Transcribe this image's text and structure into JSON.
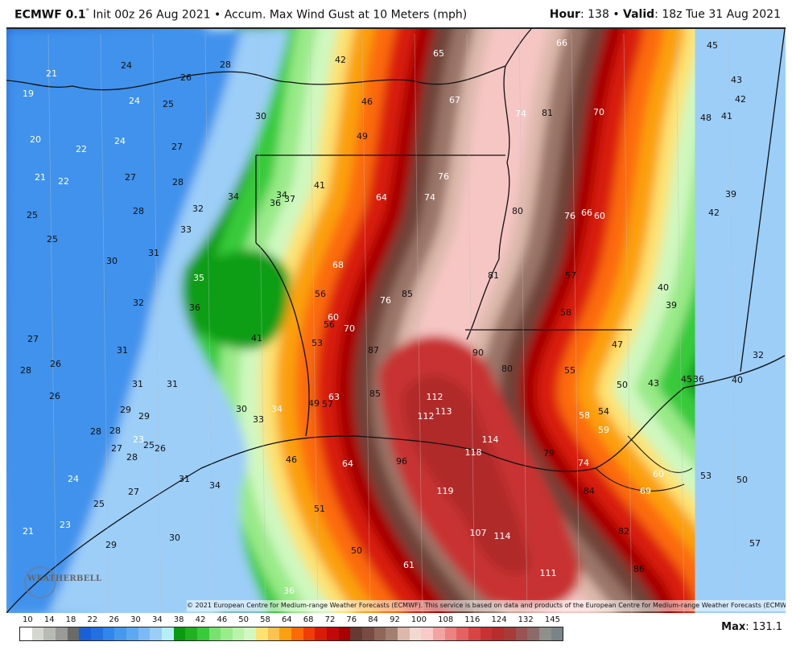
{
  "header": {
    "model": "ECMWF 0.1",
    "degree": "°",
    "init": "Init 00z 26 Aug 2021",
    "sep": "•",
    "field": "Accum. Max Wind Gust at 10 Meters (mph)",
    "hour_label": "Hour",
    "hour_value": ": 138",
    "valid_label": "Valid",
    "valid_value": ": 18z Tue 31 Aug 2021"
  },
  "credit": "© 2021 European Centre for Medium-range Weather Forecasts (ECMWF). This service is based on data and products of the European Centre for Medium-range Weather Forecasts (ECMWF).",
  "logo": "WeatherBELL",
  "max": {
    "label": "Max",
    "value": ": 131.1"
  },
  "legend": {
    "ticks": [
      "10",
      "14",
      "18",
      "22",
      "26",
      "30",
      "34",
      "38",
      "42",
      "46",
      "50",
      "58",
      "64",
      "68",
      "72",
      "76",
      "84",
      "92",
      "100",
      "108",
      "116",
      "124",
      "132",
      "145"
    ],
    "colors": [
      "#ffffff",
      "#d4d6d0",
      "#b8bab4",
      "#9a9b98",
      "#6a6b64",
      "#1a60d8",
      "#2270e2",
      "#3086ea",
      "#4698ee",
      "#5ca8f2",
      "#7cbaf6",
      "#9acef8",
      "#b6eef8",
      "#0a9a10",
      "#20b020",
      "#38ca3a",
      "#78e270",
      "#9aec8a",
      "#baf4aa",
      "#d2f8c2",
      "#fde272",
      "#fcc250",
      "#fba010",
      "#fc6a08",
      "#f03c08",
      "#d81c08",
      "#c20808",
      "#a80000",
      "#663a30",
      "#7a4b42",
      "#8f6658",
      "#a37f72",
      "#dcb8aa",
      "#f1d9d1",
      "#fcc9c9",
      "#f5a2a2",
      "#ec8282",
      "#e46262",
      "#d84444",
      "#c83232",
      "#b82c2c",
      "#a83a3a",
      "#9a5252",
      "#8c6a6a",
      "#8f8f8b",
      "#7a8488"
    ]
  },
  "field_colors": {
    "cyan": "#b4ecf8",
    "green": "#0e9e14",
    "green2": "#38ca3a",
    "lightgreen": "#98ea88",
    "palegreen": "#cff8bf",
    "yellow": "#fde272",
    "orange": "#fba010",
    "orangered": "#fc6a08",
    "red": "#d81c08",
    "darkred": "#a80000",
    "brown": "#6f4238",
    "midbrown": "#9a7568",
    "lightbrown": "#dcb8aa",
    "pink": "#f6c6c4",
    "core": "#c83232",
    "core2": "#b02c2c",
    "blue_dark": "#1f66dc",
    "blue_mid": "#3f92ec",
    "blue_light": "#9ccef8"
  },
  "map_labels": [
    {
      "v": "21",
      "tone": "white"
    },
    {
      "v": "19",
      "tone": "white"
    },
    {
      "v": "24",
      "tone": "black"
    },
    {
      "v": "26",
      "tone": "black"
    },
    {
      "v": "28",
      "tone": "black"
    },
    {
      "v": "24",
      "tone": "white"
    },
    {
      "v": "25",
      "tone": "black"
    },
    {
      "v": "20",
      "tone": "white"
    },
    {
      "v": "22",
      "tone": "white"
    },
    {
      "v": "24",
      "tone": "white"
    },
    {
      "v": "27",
      "tone": "black"
    },
    {
      "v": "21",
      "tone": "white"
    },
    {
      "v": "22",
      "tone": "white"
    },
    {
      "v": "27",
      "tone": "black"
    },
    {
      "v": "28",
      "tone": "black"
    },
    {
      "v": "30",
      "tone": "black"
    },
    {
      "v": "42",
      "tone": "black"
    },
    {
      "v": "46",
      "tone": "black"
    },
    {
      "v": "49",
      "tone": "black"
    },
    {
      "v": "34",
      "tone": "black"
    },
    {
      "v": "32",
      "tone": "black"
    },
    {
      "v": "33",
      "tone": "black"
    },
    {
      "v": "28",
      "tone": "black"
    },
    {
      "v": "25",
      "tone": "black"
    },
    {
      "v": "25",
      "tone": "black"
    },
    {
      "v": "30",
      "tone": "black"
    },
    {
      "v": "31",
      "tone": "black"
    },
    {
      "v": "35",
      "tone": "white"
    },
    {
      "v": "36",
      "tone": "black"
    },
    {
      "v": "32",
      "tone": "black"
    },
    {
      "v": "34",
      "tone": "black"
    },
    {
      "v": "37",
      "tone": "black"
    },
    {
      "v": "36",
      "tone": "black"
    },
    {
      "v": "41",
      "tone": "black"
    },
    {
      "v": "64",
      "tone": "white"
    },
    {
      "v": "68",
      "tone": "white"
    },
    {
      "v": "56",
      "tone": "black"
    },
    {
      "v": "60",
      "tone": "white"
    },
    {
      "v": "66",
      "tone": "white"
    },
    {
      "v": "65",
      "tone": "white"
    },
    {
      "v": "67",
      "tone": "white"
    },
    {
      "v": "74",
      "tone": "white"
    },
    {
      "v": "81",
      "tone": "black"
    },
    {
      "v": "70",
      "tone": "white"
    },
    {
      "v": "45",
      "tone": "black"
    },
    {
      "v": "43",
      "tone": "black"
    },
    {
      "v": "42",
      "tone": "black"
    },
    {
      "v": "48",
      "tone": "black"
    },
    {
      "v": "41",
      "tone": "black"
    },
    {
      "v": "76",
      "tone": "white"
    },
    {
      "v": "74",
      "tone": "white"
    },
    {
      "v": "80",
      "tone": "black"
    },
    {
      "v": "76",
      "tone": "white"
    },
    {
      "v": "66",
      "tone": "white"
    },
    {
      "v": "60",
      "tone": "white"
    },
    {
      "v": "39",
      "tone": "black"
    },
    {
      "v": "42",
      "tone": "black"
    },
    {
      "v": "57",
      "tone": "black"
    },
    {
      "v": "81",
      "tone": "black"
    },
    {
      "v": "85",
      "tone": "black"
    },
    {
      "v": "76",
      "tone": "white"
    },
    {
      "v": "40",
      "tone": "black"
    },
    {
      "v": "39",
      "tone": "black"
    },
    {
      "v": "58",
      "tone": "black"
    },
    {
      "v": "27",
      "tone": "black"
    },
    {
      "v": "31",
      "tone": "black"
    },
    {
      "v": "26",
      "tone": "black"
    },
    {
      "v": "28",
      "tone": "black"
    },
    {
      "v": "26",
      "tone": "black"
    },
    {
      "v": "31",
      "tone": "black"
    },
    {
      "v": "31",
      "tone": "black"
    },
    {
      "v": "41",
      "tone": "black"
    },
    {
      "v": "53",
      "tone": "black"
    },
    {
      "v": "70",
      "tone": "white"
    },
    {
      "v": "56",
      "tone": "black"
    },
    {
      "v": "87",
      "tone": "black"
    },
    {
      "v": "85",
      "tone": "black"
    },
    {
      "v": "29",
      "tone": "black"
    },
    {
      "v": "29",
      "tone": "black"
    },
    {
      "v": "30",
      "tone": "black"
    },
    {
      "v": "33",
      "tone": "black"
    },
    {
      "v": "34",
      "tone": "white"
    },
    {
      "v": "49",
      "tone": "black"
    },
    {
      "v": "57",
      "tone": "black"
    },
    {
      "v": "63",
      "tone": "white"
    },
    {
      "v": "28",
      "tone": "black"
    },
    {
      "v": "28",
      "tone": "black"
    },
    {
      "v": "23",
      "tone": "white"
    },
    {
      "v": "25",
      "tone": "black"
    },
    {
      "v": "26",
      "tone": "black"
    },
    {
      "v": "27",
      "tone": "black"
    },
    {
      "v": "28",
      "tone": "black"
    },
    {
      "v": "24",
      "tone": "white"
    },
    {
      "v": "27",
      "tone": "black"
    },
    {
      "v": "25",
      "tone": "black"
    },
    {
      "v": "34",
      "tone": "black"
    },
    {
      "v": "31",
      "tone": "black"
    },
    {
      "v": "46",
      "tone": "black"
    },
    {
      "v": "64",
      "tone": "white"
    },
    {
      "v": "51",
      "tone": "black"
    },
    {
      "v": "23",
      "tone": "white"
    },
    {
      "v": "21",
      "tone": "white"
    },
    {
      "v": "29",
      "tone": "black"
    },
    {
      "v": "30",
      "tone": "black"
    },
    {
      "v": "50",
      "tone": "black"
    },
    {
      "v": "36",
      "tone": "white"
    },
    {
      "v": "90",
      "tone": "black"
    },
    {
      "v": "80",
      "tone": "black"
    },
    {
      "v": "47",
      "tone": "black"
    },
    {
      "v": "55",
      "tone": "black"
    },
    {
      "v": "32",
      "tone": "black"
    },
    {
      "v": "50",
      "tone": "black"
    },
    {
      "v": "43",
      "tone": "black"
    },
    {
      "v": "45",
      "tone": "black"
    },
    {
      "v": "36",
      "tone": "black"
    },
    {
      "v": "40",
      "tone": "black"
    },
    {
      "v": "112",
      "tone": "white"
    },
    {
      "v": "113",
      "tone": "white"
    },
    {
      "v": "112",
      "tone": "white"
    },
    {
      "v": "58",
      "tone": "white"
    },
    {
      "v": "54",
      "tone": "black"
    },
    {
      "v": "59",
      "tone": "white"
    },
    {
      "v": "114",
      "tone": "white"
    },
    {
      "v": "118",
      "tone": "white"
    },
    {
      "v": "96",
      "tone": "black"
    },
    {
      "v": "79",
      "tone": "black"
    },
    {
      "v": "74",
      "tone": "white"
    },
    {
      "v": "60",
      "tone": "white"
    },
    {
      "v": "53",
      "tone": "black"
    },
    {
      "v": "50",
      "tone": "black"
    },
    {
      "v": "84",
      "tone": "black"
    },
    {
      "v": "69",
      "tone": "white"
    },
    {
      "v": "119",
      "tone": "white"
    },
    {
      "v": "82",
      "tone": "black"
    },
    {
      "v": "107",
      "tone": "white"
    },
    {
      "v": "114",
      "tone": "white"
    },
    {
      "v": "57",
      "tone": "black"
    },
    {
      "v": "61",
      "tone": "white"
    },
    {
      "v": "86",
      "tone": "black"
    },
    {
      "v": "111",
      "tone": "white"
    }
  ]
}
